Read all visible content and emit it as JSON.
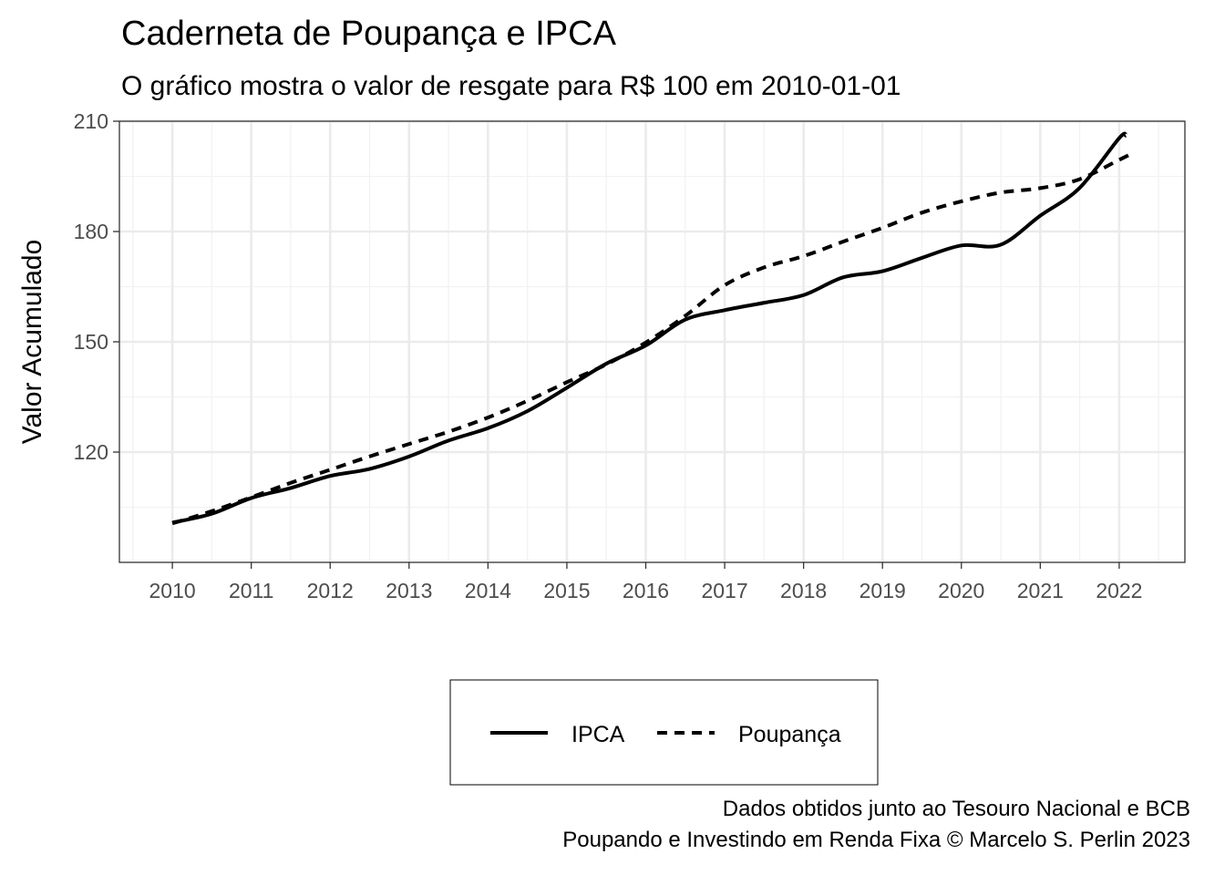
{
  "chart_data": {
    "type": "line",
    "title": "Caderneta de Poupança e IPCA",
    "subtitle": "O gráfico mostra o valor de resgate para R$ 100 em 2010-01-01",
    "xlabel": "",
    "ylabel": "Valor Acumulado",
    "xlim": [
      "2009-05-01",
      "2022-11-01"
    ],
    "ylim": [
      90,
      210
    ],
    "xticks": [
      "2010",
      "2011",
      "2012",
      "2013",
      "2014",
      "2015",
      "2016",
      "2017",
      "2018",
      "2019",
      "2020",
      "2021",
      "2022"
    ],
    "yticks": [
      120,
      150,
      180,
      210
    ],
    "grid": true,
    "legend_position": "bottom",
    "caption": [
      "Dados obtidos junto ao Tesouro Nacional e BCB",
      "Poupando e Investindo em Renda Fixa © Marcelo S. Perlin 2023"
    ],
    "series": [
      {
        "name": "IPCA",
        "linetype": "solid",
        "color": "#000000",
        "x": [
          "2010-01-01",
          "2010-07-01",
          "2011-01-01",
          "2011-07-01",
          "2012-01-01",
          "2012-07-01",
          "2013-01-01",
          "2013-07-01",
          "2014-01-01",
          "2014-07-01",
          "2015-01-01",
          "2015-07-01",
          "2016-01-01",
          "2016-07-01",
          "2017-01-01",
          "2017-07-01",
          "2018-01-01",
          "2018-07-01",
          "2019-01-01",
          "2019-07-01",
          "2020-01-01",
          "2020-07-01",
          "2021-01-01",
          "2021-07-01",
          "2022-01-01",
          "2022-02-01"
        ],
        "values": [
          100.8,
          103.2,
          107.5,
          110.2,
          113.5,
          115.4,
          118.8,
          123.1,
          126.5,
          131.1,
          137.5,
          144.0,
          149.0,
          156.0,
          158.6,
          160.6,
          162.7,
          167.5,
          169.2,
          172.8,
          176.2,
          176.4,
          184.3,
          191.8,
          205.4,
          206.1
        ]
      },
      {
        "name": "Poupança",
        "linetype": "dashed",
        "color": "#000000",
        "x": [
          "2010-01-01",
          "2010-07-01",
          "2011-01-01",
          "2011-07-01",
          "2012-01-01",
          "2012-07-01",
          "2013-01-01",
          "2013-07-01",
          "2014-01-01",
          "2014-07-01",
          "2015-01-01",
          "2015-07-01",
          "2016-01-01",
          "2016-07-01",
          "2017-01-01",
          "2017-07-01",
          "2018-01-01",
          "2018-07-01",
          "2019-01-01",
          "2019-07-01",
          "2020-01-01",
          "2020-07-01",
          "2021-01-01",
          "2021-07-01",
          "2022-01-01",
          "2022-03-01"
        ],
        "values": [
          100.6,
          103.9,
          107.7,
          111.6,
          115.2,
          118.8,
          122.2,
          125.5,
          129.4,
          133.9,
          139.0,
          143.8,
          149.8,
          157.0,
          165.4,
          170.2,
          173.3,
          177.2,
          181.0,
          185.1,
          188.2,
          190.6,
          191.8,
          194.2,
          199.5,
          201.2
        ]
      }
    ]
  }
}
